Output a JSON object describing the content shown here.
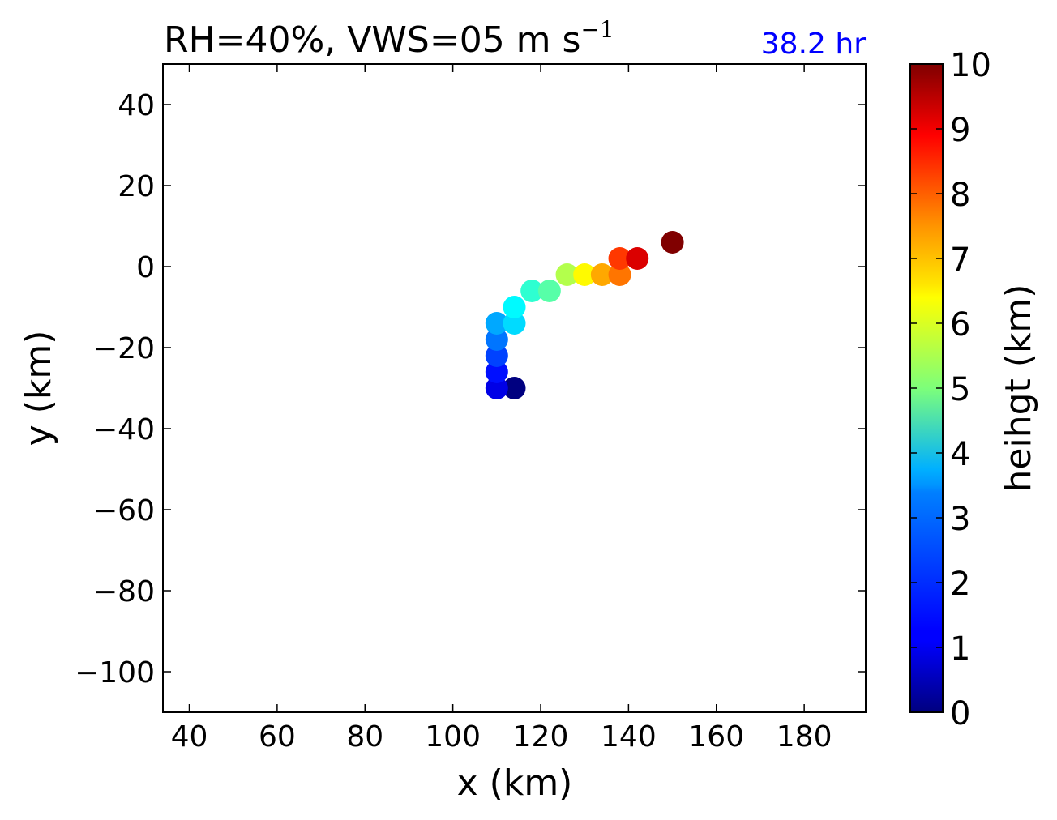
{
  "chart_data": {
    "type": "scatter",
    "title": {
      "main": "RH=40%, VWS=05 m s",
      "exponent": "−1"
    },
    "time_label": "38.2 hr",
    "xlabel": "x (km)",
    "ylabel": "y (km)",
    "xlim": [
      34,
      194
    ],
    "ylim": [
      -110,
      50
    ],
    "xticks": [
      "40",
      "60",
      "80",
      "100",
      "120",
      "140",
      "160",
      "180"
    ],
    "yticks": [
      "40",
      "20",
      "0",
      "−20",
      "−40",
      "−60",
      "−80",
      "−100"
    ],
    "colorbar": {
      "label": "heihgt (km)",
      "range": [
        0,
        10
      ],
      "ticks": [
        "0",
        "1",
        "2",
        "3",
        "4",
        "5",
        "6",
        "7",
        "8",
        "9",
        "10"
      ],
      "colormap": "jet"
    },
    "grid": false,
    "points": [
      {
        "x": 114,
        "y": -30,
        "height": 0.0
      },
      {
        "x": 110,
        "y": -30,
        "height": 1.0
      },
      {
        "x": 110,
        "y": -26,
        "height": 1.4
      },
      {
        "x": 110,
        "y": -22,
        "height": 1.9
      },
      {
        "x": 110,
        "y": -18,
        "height": 2.4
      },
      {
        "x": 110,
        "y": -14,
        "height": 2.9
      },
      {
        "x": 114,
        "y": -14,
        "height": 3.4
      },
      {
        "x": 114,
        "y": -10,
        "height": 3.7
      },
      {
        "x": 118,
        "y": -6,
        "height": 4.2
      },
      {
        "x": 122,
        "y": -6,
        "height": 4.6
      },
      {
        "x": 126,
        "y": -2,
        "height": 5.5
      },
      {
        "x": 130,
        "y": -2,
        "height": 6.3
      },
      {
        "x": 134,
        "y": -2,
        "height": 7.1
      },
      {
        "x": 138,
        "y": -2,
        "height": 7.6
      },
      {
        "x": 138,
        "y": 2,
        "height": 8.2
      },
      {
        "x": 142,
        "y": 2,
        "height": 9.1
      },
      {
        "x": 150,
        "y": 6,
        "height": 10.0
      }
    ]
  }
}
